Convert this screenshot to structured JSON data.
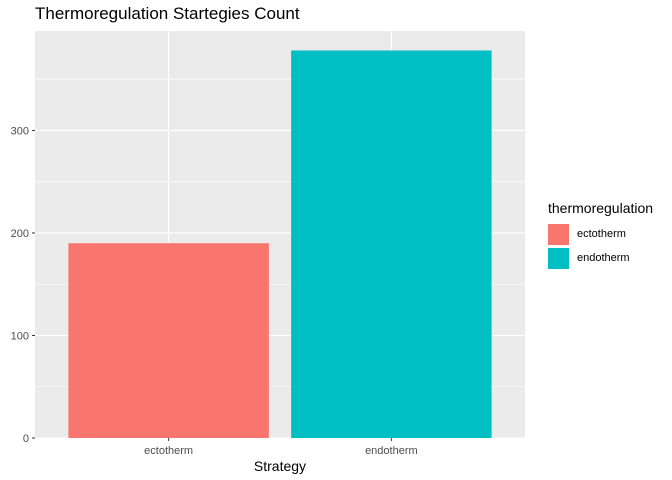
{
  "chart_data": {
    "type": "bar",
    "title": "Thermoregulation Startegies Count",
    "xlabel": "Strategy",
    "ylabel": "",
    "categories": [
      "ectotherm",
      "endotherm"
    ],
    "values": [
      190,
      378
    ],
    "colors": [
      "#F8766D",
      "#00BFC4"
    ],
    "ylim": [
      0,
      397
    ],
    "yticks": [
      0,
      100,
      200,
      300
    ],
    "grid": true,
    "panel_background": "#EBEBEB",
    "legend": {
      "title": "thermoregulation",
      "placement": "right",
      "entries": [
        "ectotherm",
        "endotherm"
      ]
    }
  }
}
